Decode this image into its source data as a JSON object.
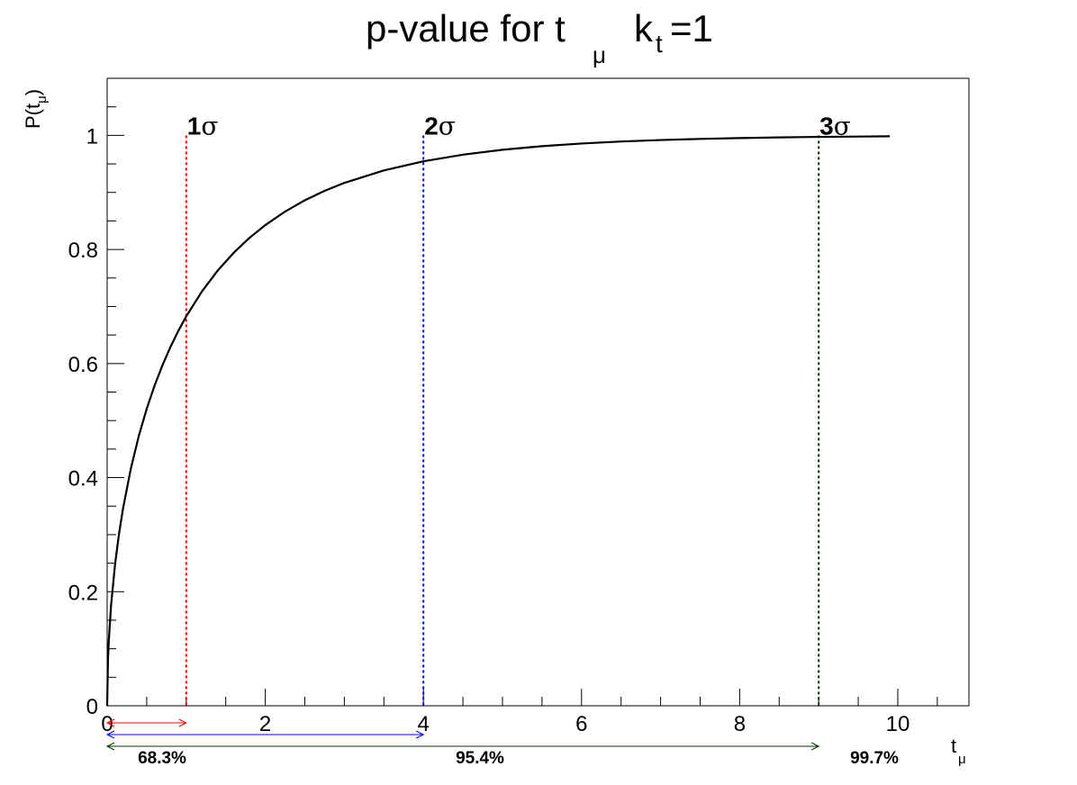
{
  "chart_data": {
    "type": "line",
    "title": {
      "main": "p-value for t",
      "sub1": "μ",
      "mid": "k",
      "sub2": "t",
      "tail": "=1"
    },
    "xlabel": {
      "main": "t",
      "sub": "μ"
    },
    "ylabel": {
      "main": "P(t",
      "sub": "μ",
      "tail": ")"
    },
    "xlim": [
      0,
      10.9
    ],
    "ylim": [
      0,
      1.1
    ],
    "x_ticks": [
      0,
      2,
      4,
      6,
      8,
      10
    ],
    "y_ticks": [
      0,
      0.2,
      0.4,
      0.6,
      0.8,
      1
    ],
    "x_tick_labels": [
      "0",
      "2",
      "4",
      "6",
      "8",
      "10"
    ],
    "y_tick_labels": [
      "0",
      "0.2",
      "0.4",
      "0.6",
      "0.8",
      "1"
    ],
    "grid": false,
    "series": [
      {
        "color": "#000000",
        "x": [
          0,
          0.01,
          0.02,
          0.05,
          0.1,
          0.15,
          0.2,
          0.3,
          0.4,
          0.5,
          0.6,
          0.7,
          0.8,
          0.9,
          1.0,
          1.2,
          1.4,
          1.6,
          1.8,
          2.0,
          2.25,
          2.5,
          2.75,
          3.0,
          3.5,
          4.0,
          4.5,
          5.0,
          5.5,
          6.0,
          6.5,
          7.0,
          7.5,
          8.0,
          8.5,
          9.0,
          9.5,
          9.9
        ],
        "y": [
          0,
          0.0797,
          0.1125,
          0.1769,
          0.2482,
          0.3015,
          0.3453,
          0.4161,
          0.4729,
          0.5205,
          0.5614,
          0.5972,
          0.6289,
          0.6572,
          0.6827,
          0.7266,
          0.7633,
          0.7941,
          0.8203,
          0.8427,
          0.8664,
          0.8862,
          0.9027,
          0.9167,
          0.9386,
          0.9545,
          0.9661,
          0.9747,
          0.981,
          0.9857,
          0.9892,
          0.9918,
          0.9938,
          0.9953,
          0.9964,
          0.9973,
          0.9979,
          0.9984
        ]
      }
    ],
    "markers": [
      {
        "x": 1,
        "label_num": "1",
        "label_sym": "σ",
        "color": "#ff0000",
        "text": "68.3%"
      },
      {
        "x": 4,
        "label_num": "2",
        "label_sym": "σ",
        "color": "#0000ff",
        "text": "95.4%"
      },
      {
        "x": 9,
        "label_num": "3",
        "label_sym": "σ",
        "color": "#003300",
        "text": "99.7%"
      }
    ]
  }
}
